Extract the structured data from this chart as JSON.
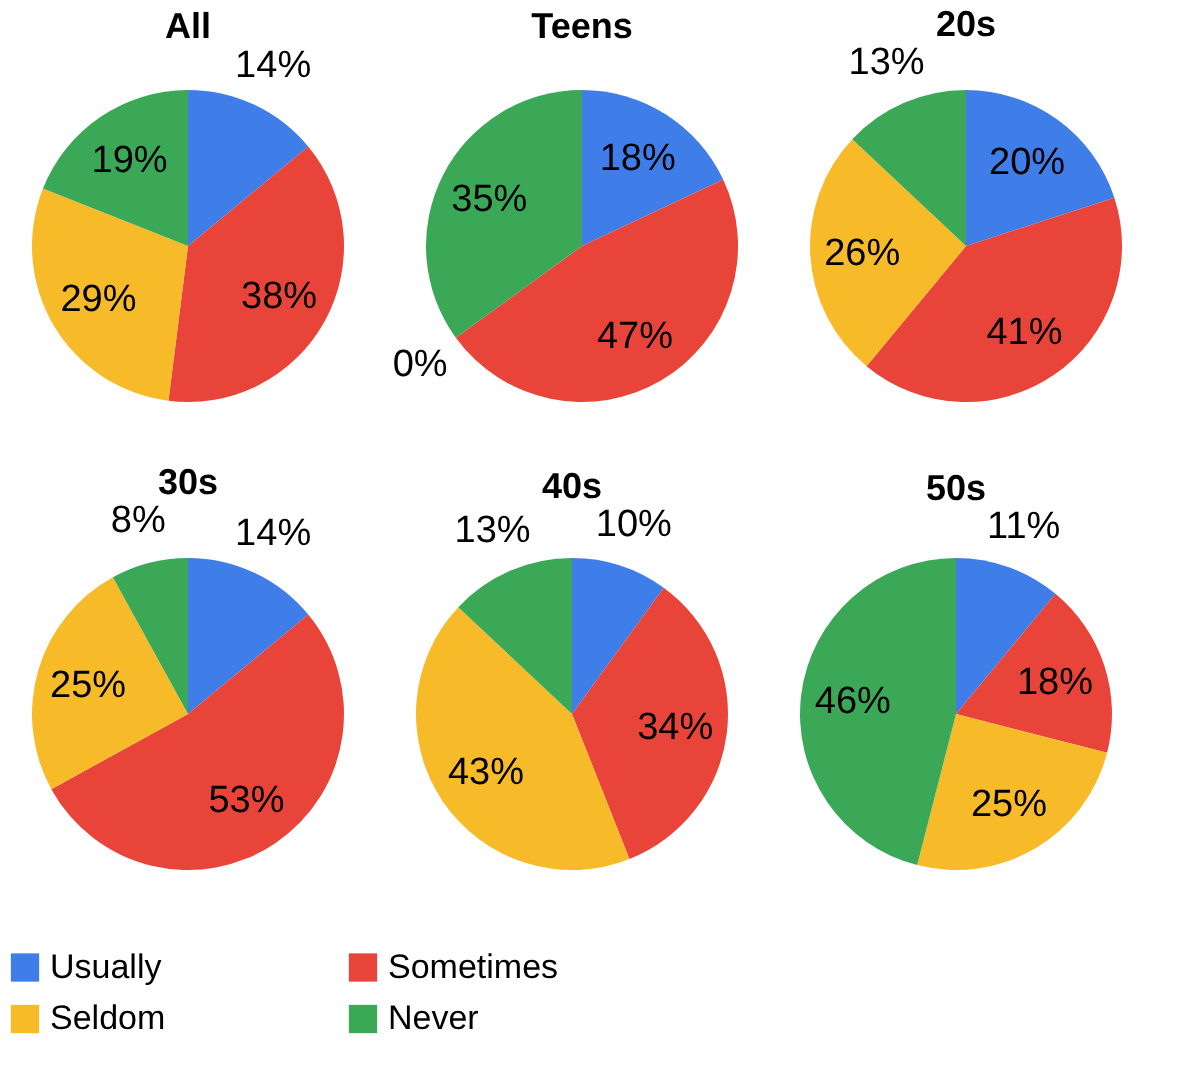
{
  "chart_data": [
    {
      "type": "pie",
      "title": "All",
      "categories": [
        "Usually",
        "Sometimes",
        "Seldom",
        "Never"
      ],
      "values": [
        14,
        38,
        29,
        19
      ],
      "colors": [
        "#3f7ee8",
        "#e8443a",
        "#f7bb2a",
        "#3aa857"
      ],
      "value_labels": [
        "14%",
        "38%",
        "29%",
        "19%"
      ],
      "legend": "bottom"
    },
    {
      "type": "pie",
      "title": "Teens",
      "categories": [
        null,
        null,
        null,
        null
      ],
      "values": [
        18,
        47,
        0,
        35
      ],
      "colors": [
        "#3f7ee8",
        "#e8443a",
        "#f7bb2a",
        "#3aa857"
      ],
      "value_labels": [
        "18%",
        "47%",
        "0%",
        "35%"
      ]
    },
    {
      "type": "pie",
      "title": "20s",
      "categories": [
        null,
        null,
        null,
        null
      ],
      "values": [
        20,
        41,
        26,
        13
      ],
      "colors": [
        "#3f7ee8",
        "#e8443a",
        "#f7bb2a",
        "#3aa857"
      ],
      "value_labels": [
        "20%",
        "41%",
        "26%",
        "13%"
      ]
    },
    {
      "type": "pie",
      "title": "30s",
      "categories": [
        null,
        null,
        null,
        null
      ],
      "values": [
        14,
        53,
        25,
        8
      ],
      "colors": [
        "#3f7ee8",
        "#e8443a",
        "#f7bb2a",
        "#3aa857"
      ],
      "value_labels": [
        "14%",
        "53%",
        "25%",
        "8%"
      ]
    },
    {
      "type": "pie",
      "title": "40s",
      "categories": [
        null,
        null,
        null,
        null
      ],
      "values": [
        10,
        34,
        43,
        13
      ],
      "colors": [
        "#3f7ee8",
        "#e8443a",
        "#f7bb2a",
        "#3aa857"
      ],
      "value_labels": [
        "10%",
        "34%",
        "43%",
        "13%"
      ]
    },
    {
      "type": "pie",
      "title": "50s",
      "categories": [
        null,
        null,
        null,
        null
      ],
      "values": [
        11,
        18,
        25,
        46
      ],
      "colors": [
        "#3f7ee8",
        "#e8443a",
        "#f7bb2a",
        "#3aa857"
      ],
      "value_labels": [
        "11%",
        "18%",
        "25%",
        "46%"
      ]
    }
  ]
}
